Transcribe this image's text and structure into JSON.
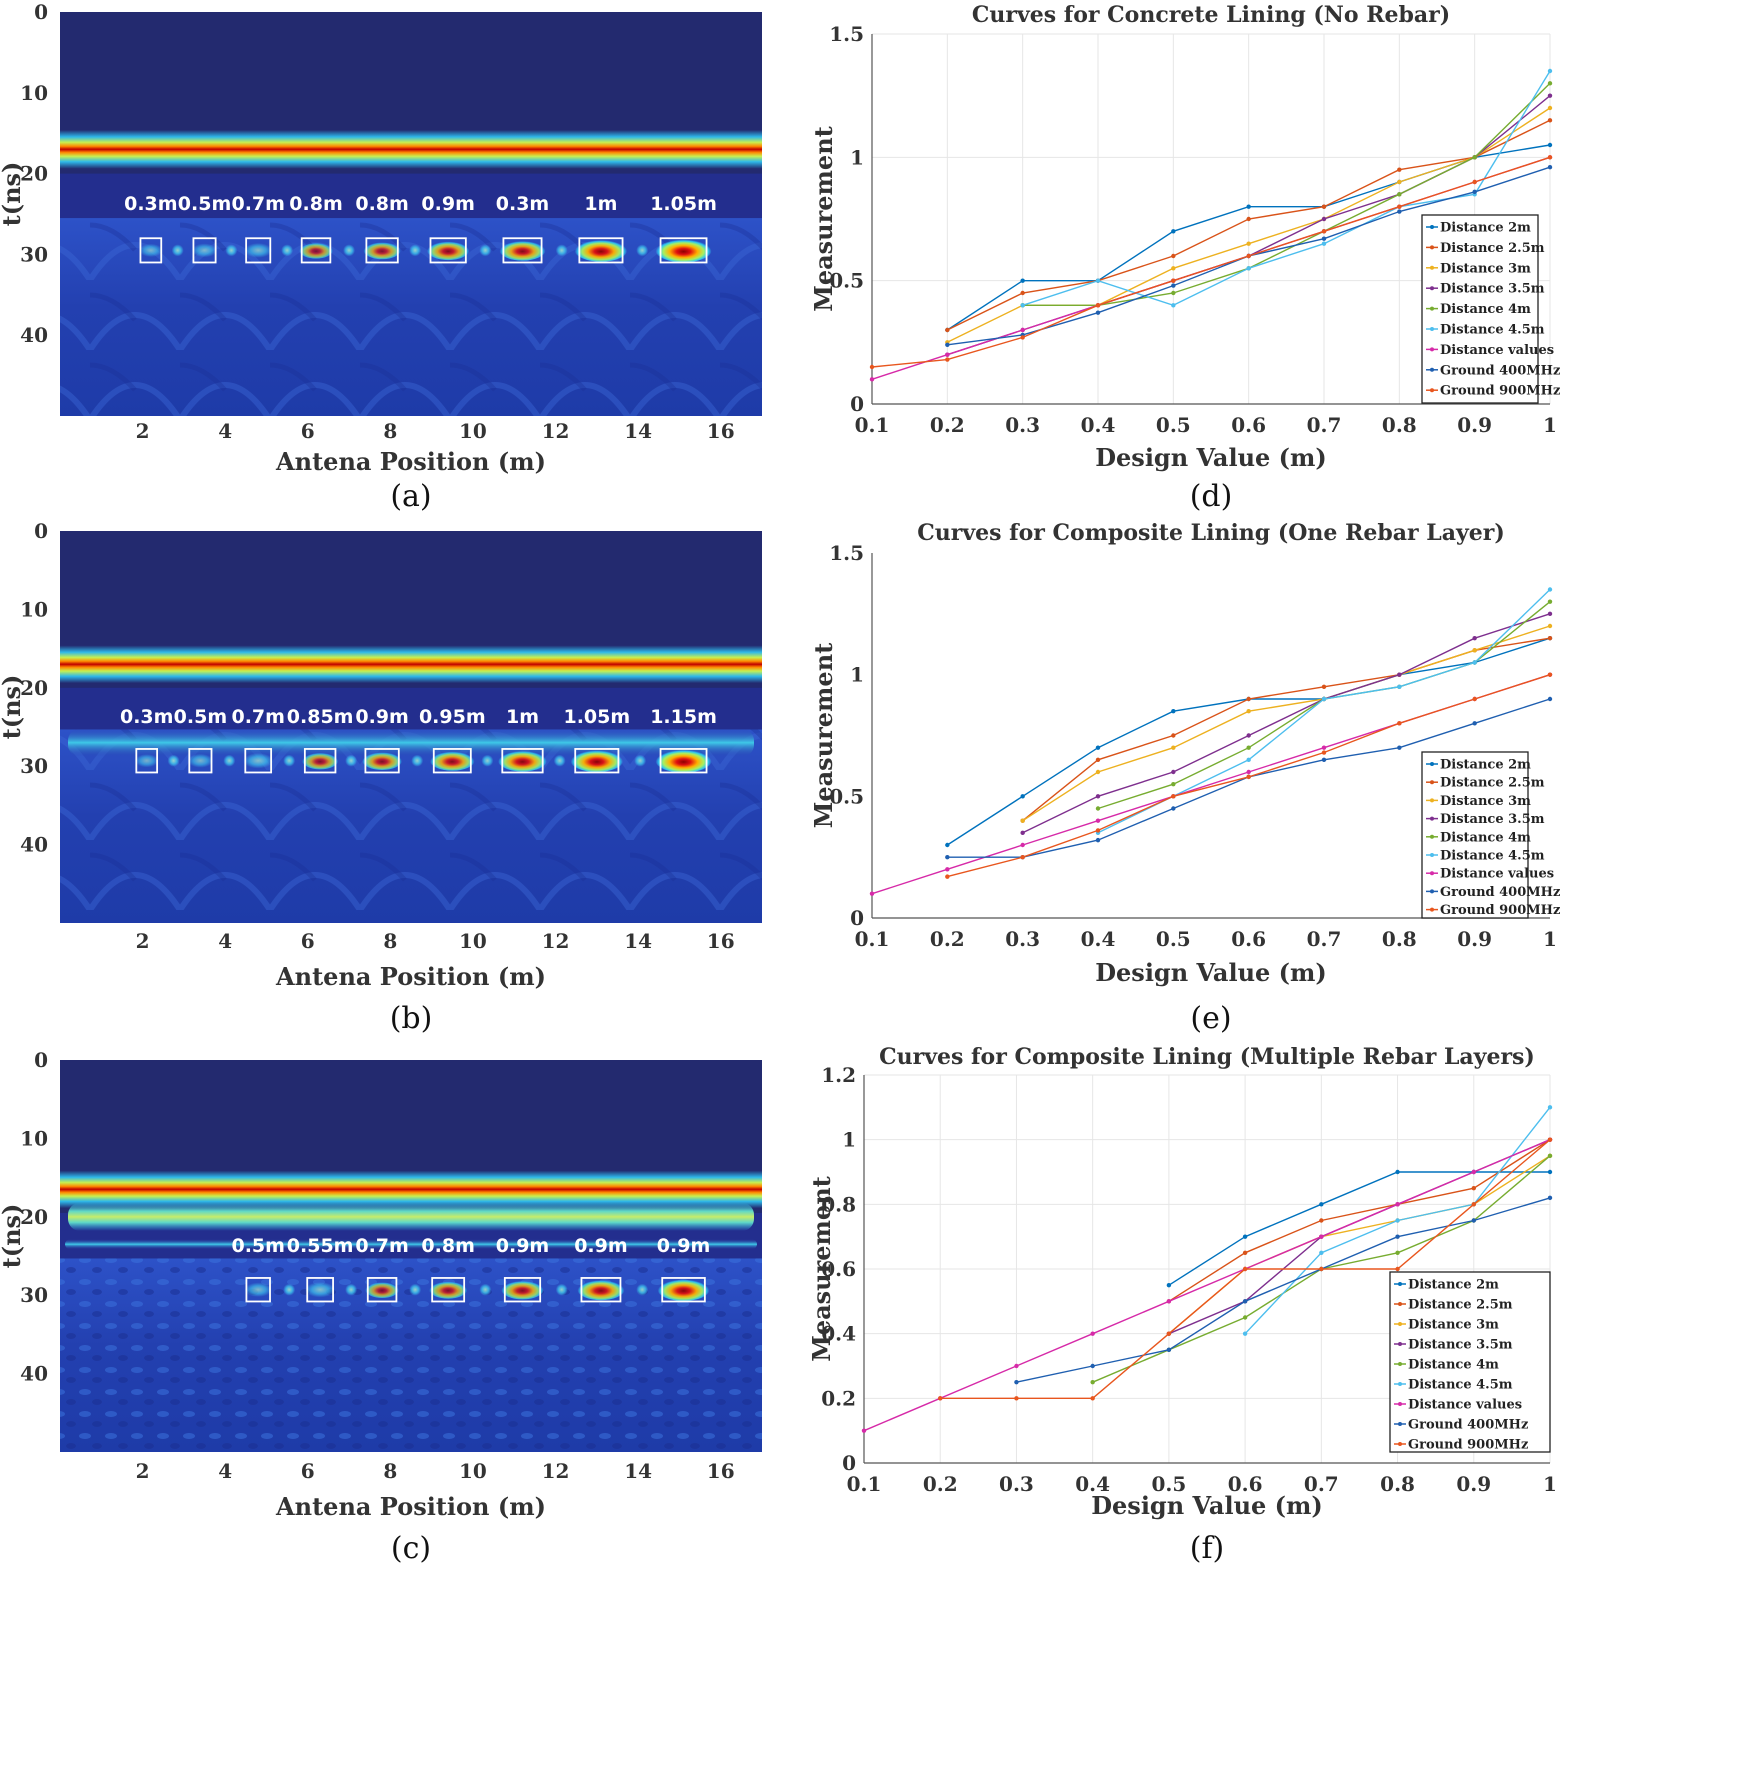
{
  "colors": {
    "series": [
      "#0072BD",
      "#D95319",
      "#EDB120",
      "#7E2F8E",
      "#77AC30",
      "#4DBEEE",
      "#D62AA8",
      "#1F5FB0",
      "#E8561E"
    ],
    "dark_bg": "#232A6F",
    "axis": "#333333"
  },
  "gpr_panels": [
    {
      "caption": "(a)",
      "xlabel": "Antena Position (m)",
      "ylabel": "t(ns)",
      "xticks": [
        "2",
        "4",
        "6",
        "8",
        "10",
        "12",
        "14",
        "16"
      ],
      "yticks": [
        "0",
        "10",
        "20",
        "30",
        "40"
      ],
      "xlim": [
        0,
        17
      ],
      "ylim": [
        0,
        50
      ],
      "hot_band_t": 17,
      "secondary_band_t": null,
      "target_t": 29.5,
      "target_label_t": 24.5,
      "targets": [
        {
          "x": 2.2,
          "label": "0.3m",
          "intensity": 0.1
        },
        {
          "x": 3.5,
          "label": "0.5m",
          "intensity": 0.15
        },
        {
          "x": 4.8,
          "label": "0.7m",
          "intensity": 0.22
        },
        {
          "x": 6.2,
          "label": "0.8m",
          "intensity": 0.38
        },
        {
          "x": 7.8,
          "label": "0.8m",
          "intensity": 0.48
        },
        {
          "x": 9.4,
          "label": "0.9m",
          "intensity": 0.62
        },
        {
          "x": 11.2,
          "label": "0.3m",
          "intensity": 0.72
        },
        {
          "x": 13.1,
          "label": "1m",
          "intensity": 0.9
        },
        {
          "x": 15.1,
          "label": "1.05m",
          "intensity": 1.0
        }
      ]
    },
    {
      "caption": "(b)",
      "xlabel": "Antena Position (m)",
      "ylabel": "t(ns)",
      "xticks": [
        "2",
        "4",
        "6",
        "8",
        "10",
        "12",
        "14",
        "16"
      ],
      "yticks": [
        "0",
        "10",
        "20",
        "30",
        "40"
      ],
      "xlim": [
        0,
        17
      ],
      "ylim": [
        0,
        50
      ],
      "hot_band_t": 17,
      "secondary_band_t": 27,
      "target_t": 29.3,
      "target_label_t": 24.5,
      "targets": [
        {
          "x": 2.1,
          "label": "0.3m",
          "intensity": 0.1
        },
        {
          "x": 3.4,
          "label": "0.5m",
          "intensity": 0.15
        },
        {
          "x": 4.8,
          "label": "0.7m",
          "intensity": 0.28
        },
        {
          "x": 6.3,
          "label": "0.85m",
          "intensity": 0.45
        },
        {
          "x": 7.8,
          "label": "0.9m",
          "intensity": 0.55
        },
        {
          "x": 9.5,
          "label": "0.95m",
          "intensity": 0.68
        },
        {
          "x": 11.2,
          "label": "1m",
          "intensity": 0.8
        },
        {
          "x": 13.0,
          "label": "1.05m",
          "intensity": 0.9
        },
        {
          "x": 15.1,
          "label": "1.15m",
          "intensity": 1.0
        }
      ]
    },
    {
      "caption": "(c)",
      "xlabel": "Antena Position (m)",
      "ylabel": "t(ns)",
      "xticks": [
        "2",
        "4",
        "6",
        "8",
        "10",
        "12",
        "14",
        "16"
      ],
      "yticks": [
        "0",
        "10",
        "20",
        "30",
        "40"
      ],
      "xlim": [
        0,
        17
      ],
      "ylim": [
        0,
        50
      ],
      "hot_band_t": 16.5,
      "secondary_band_t": 20,
      "target_t": 29.3,
      "target_label_t": 24.5,
      "targets": [
        {
          "x": 4.8,
          "label": "0.5m",
          "intensity": 0.2
        },
        {
          "x": 6.3,
          "label": "0.55m",
          "intensity": 0.28
        },
        {
          "x": 7.8,
          "label": "0.7m",
          "intensity": 0.38
        },
        {
          "x": 9.4,
          "label": "0.8m",
          "intensity": 0.5
        },
        {
          "x": 11.2,
          "label": "0.9m",
          "intensity": 0.62
        },
        {
          "x": 13.1,
          "label": "0.9m",
          "intensity": 0.75
        },
        {
          "x": 15.1,
          "label": "0.9m",
          "intensity": 0.88
        }
      ]
    }
  ],
  "chart_data": [
    {
      "type": "line",
      "caption": "(d)",
      "title": "Curves for Concrete Lining (No Rebar)",
      "xlabel": "Design Value (m)",
      "ylabel": "Measurement",
      "xlim": [
        0.1,
        1
      ],
      "ylim": [
        0,
        1.5
      ],
      "xticks": [
        "0.1",
        "0.2",
        "0.3",
        "0.4",
        "0.5",
        "0.6",
        "0.7",
        "0.8",
        "0.9",
        "1"
      ],
      "yticks": [
        "0",
        "0.5",
        "1",
        "1.5"
      ],
      "grid": true,
      "legend_position": "right",
      "series": [
        {
          "name": "Distance 2m",
          "x": [
            0.2,
            0.3,
            0.4,
            0.5,
            0.6,
            0.7,
            0.8,
            0.9,
            1
          ],
          "y": [
            0.3,
            0.5,
            0.5,
            0.7,
            0.8,
            0.8,
            0.9,
            1.0,
            1.05
          ]
        },
        {
          "name": "Distance 2.5m",
          "x": [
            0.2,
            0.3,
            0.4,
            0.5,
            0.6,
            0.7,
            0.8,
            0.9,
            1
          ],
          "y": [
            0.3,
            0.45,
            0.5,
            0.6,
            0.75,
            0.8,
            0.95,
            1.0,
            1.15
          ]
        },
        {
          "name": "Distance 3m",
          "x": [
            0.2,
            0.3,
            0.4,
            0.5,
            0.6,
            0.7,
            0.8,
            0.9,
            1
          ],
          "y": [
            0.25,
            0.4,
            0.4,
            0.55,
            0.65,
            0.75,
            0.9,
            1.0,
            1.2
          ]
        },
        {
          "name": "Distance 3.5m",
          "x": [
            0.2,
            0.3,
            0.4,
            0.5,
            0.6,
            0.7,
            0.8,
            0.9,
            1
          ],
          "y": [
            0.2,
            0.3,
            0.4,
            0.5,
            0.6,
            0.75,
            0.85,
            1.0,
            1.25
          ]
        },
        {
          "name": "Distance 4m",
          "x": [
            0.3,
            0.4,
            0.5,
            0.6,
            0.7,
            0.8,
            0.9,
            1
          ],
          "y": [
            0.4,
            0.4,
            0.45,
            0.55,
            0.7,
            0.85,
            1.0,
            1.3
          ]
        },
        {
          "name": "Distance 4.5m",
          "x": [
            0.3,
            0.4,
            0.5,
            0.6,
            0.7,
            0.8,
            0.9,
            1
          ],
          "y": [
            0.4,
            0.5,
            0.4,
            0.55,
            0.65,
            0.8,
            0.85,
            1.35
          ]
        },
        {
          "name": "Distance values",
          "x": [
            0.1,
            0.2,
            0.3,
            0.4,
            0.5,
            0.6,
            0.7,
            0.8,
            0.9,
            1
          ],
          "y": [
            0.1,
            0.2,
            0.3,
            0.4,
            0.5,
            0.6,
            0.7,
            0.8,
            0.9,
            1.0
          ]
        },
        {
          "name": "Ground 400MHz",
          "x": [
            0.2,
            0.3,
            0.4,
            0.5,
            0.6,
            0.7,
            0.8,
            0.9,
            1
          ],
          "y": [
            0.24,
            0.28,
            0.37,
            0.48,
            0.6,
            0.67,
            0.78,
            0.86,
            0.96
          ]
        },
        {
          "name": "Ground 900MHz",
          "x": [
            0.1,
            0.2,
            0.3,
            0.4,
            0.5,
            0.6,
            0.7,
            0.8,
            0.9,
            1
          ],
          "y": [
            0.15,
            0.18,
            0.27,
            0.4,
            0.5,
            0.6,
            0.7,
            0.8,
            0.9,
            1.0
          ]
        }
      ]
    },
    {
      "type": "line",
      "caption": "(e)",
      "title": "Curves for Composite Lining (One Rebar Layer)",
      "xlabel": "Design Value (m)",
      "ylabel": "Measurement",
      "xlim": [
        0.1,
        1
      ],
      "ylim": [
        0,
        1.5
      ],
      "xticks": [
        "0.1",
        "0.2",
        "0.3",
        "0.4",
        "0.5",
        "0.6",
        "0.7",
        "0.8",
        "0.9",
        "1"
      ],
      "yticks": [
        "0",
        "0.5",
        "1",
        "1.5"
      ],
      "grid": false,
      "legend_position": "bottom-right",
      "series": [
        {
          "name": "Distance 2m",
          "x": [
            0.2,
            0.3,
            0.4,
            0.5,
            0.6,
            0.7,
            0.8,
            0.9,
            1
          ],
          "y": [
            0.3,
            0.5,
            0.7,
            0.85,
            0.9,
            0.9,
            1.0,
            1.05,
            1.15
          ]
        },
        {
          "name": "Distance 2.5m",
          "x": [
            0.3,
            0.4,
            0.5,
            0.6,
            0.7,
            0.8,
            0.9,
            1
          ],
          "y": [
            0.4,
            0.65,
            0.75,
            0.9,
            0.95,
            1.0,
            1.1,
            1.15
          ]
        },
        {
          "name": "Distance 3m",
          "x": [
            0.3,
            0.4,
            0.5,
            0.6,
            0.7,
            0.8,
            0.9,
            1
          ],
          "y": [
            0.4,
            0.6,
            0.7,
            0.85,
            0.9,
            1.0,
            1.1,
            1.2
          ]
        },
        {
          "name": "Distance 3.5m",
          "x": [
            0.3,
            0.4,
            0.5,
            0.6,
            0.7,
            0.8,
            0.9,
            1
          ],
          "y": [
            0.35,
            0.5,
            0.6,
            0.75,
            0.9,
            1.0,
            1.15,
            1.25
          ]
        },
        {
          "name": "Distance 4m",
          "x": [
            0.4,
            0.5,
            0.6,
            0.7,
            0.8,
            0.9,
            1
          ],
          "y": [
            0.45,
            0.55,
            0.7,
            0.9,
            0.95,
            1.05,
            1.3
          ]
        },
        {
          "name": "Distance 4.5m",
          "x": [
            0.4,
            0.5,
            0.6,
            0.7,
            0.8,
            0.9,
            1
          ],
          "y": [
            0.35,
            0.5,
            0.65,
            0.9,
            0.95,
            1.05,
            1.35
          ]
        },
        {
          "name": "Distance values",
          "x": [
            0.1,
            0.2,
            0.3,
            0.4,
            0.5,
            0.6,
            0.7,
            0.8,
            0.9,
            1
          ],
          "y": [
            0.1,
            0.2,
            0.3,
            0.4,
            0.5,
            0.6,
            0.7,
            0.8,
            0.9,
            1.0
          ]
        },
        {
          "name": "Ground 400MHz",
          "x": [
            0.2,
            0.3,
            0.4,
            0.5,
            0.6,
            0.7,
            0.8,
            0.9,
            1
          ],
          "y": [
            0.25,
            0.25,
            0.32,
            0.45,
            0.58,
            0.65,
            0.7,
            0.8,
            0.9
          ]
        },
        {
          "name": "Ground 900MHz",
          "x": [
            0.2,
            0.3,
            0.4,
            0.5,
            0.6,
            0.7,
            0.8,
            0.9,
            1
          ],
          "y": [
            0.17,
            0.25,
            0.36,
            0.5,
            0.58,
            0.68,
            0.8,
            0.9,
            1.0
          ]
        }
      ]
    },
    {
      "type": "line",
      "caption": "(f)",
      "title": "Curves for Composite Lining (Multiple Rebar Layers)",
      "xlabel": "Design Value (m)",
      "ylabel": "Measurement",
      "xlim": [
        0.1,
        1
      ],
      "ylim": [
        0,
        1.2
      ],
      "xticks": [
        "0.1",
        "0.2",
        "0.3",
        "0.4",
        "0.5",
        "0.6",
        "0.7",
        "0.8",
        "0.9",
        "1"
      ],
      "yticks": [
        "0",
        "0.2",
        "0.4",
        "0.6",
        "0.8",
        "1",
        "1.2"
      ],
      "grid": true,
      "legend_position": "bottom-right",
      "series": [
        {
          "name": "Distance 2m",
          "x": [
            0.5,
            0.6,
            0.7,
            0.8,
            0.9,
            1
          ],
          "y": [
            0.55,
            0.7,
            0.8,
            0.9,
            0.9,
            0.9
          ]
        },
        {
          "name": "Distance 2.5m",
          "x": [
            0.5,
            0.6,
            0.7,
            0.8,
            0.9,
            1
          ],
          "y": [
            0.5,
            0.65,
            0.75,
            0.8,
            0.85,
            1.0
          ]
        },
        {
          "name": "Distance 3m",
          "x": [
            0.5,
            0.6,
            0.7,
            0.8,
            0.9,
            1
          ],
          "y": [
            0.4,
            0.6,
            0.7,
            0.75,
            0.8,
            0.95
          ]
        },
        {
          "name": "Distance 3.5m",
          "x": [
            0.5,
            0.6,
            0.7,
            0.8,
            0.9,
            1
          ],
          "y": [
            0.4,
            0.5,
            0.7,
            0.8,
            0.9,
            1.0
          ]
        },
        {
          "name": "Distance 4m",
          "x": [
            0.4,
            0.5,
            0.6,
            0.7,
            0.8,
            0.9,
            1
          ],
          "y": [
            0.25,
            0.35,
            0.45,
            0.6,
            0.65,
            0.75,
            0.95
          ]
        },
        {
          "name": "Distance 4.5m",
          "x": [
            0.6,
            0.7,
            0.8,
            0.9,
            1
          ],
          "y": [
            0.4,
            0.65,
            0.75,
            0.8,
            1.1
          ]
        },
        {
          "name": "Distance values",
          "x": [
            0.1,
            0.2,
            0.3,
            0.4,
            0.5,
            0.6,
            0.7,
            0.8,
            0.9,
            1
          ],
          "y": [
            0.1,
            0.2,
            0.3,
            0.4,
            0.5,
            0.6,
            0.7,
            0.8,
            0.9,
            1.0
          ]
        },
        {
          "name": "Ground 400MHz",
          "x": [
            0.3,
            0.4,
            0.5,
            0.6,
            0.7,
            0.8,
            0.9,
            1
          ],
          "y": [
            0.25,
            0.3,
            0.35,
            0.5,
            0.6,
            0.7,
            0.75,
            0.82
          ]
        },
        {
          "name": "Ground 900MHz",
          "x": [
            0.2,
            0.3,
            0.4,
            0.5,
            0.6,
            0.7,
            0.8,
            0.9,
            1
          ],
          "y": [
            0.2,
            0.2,
            0.2,
            0.4,
            0.6,
            0.6,
            0.6,
            0.8,
            1.0
          ]
        }
      ]
    }
  ]
}
